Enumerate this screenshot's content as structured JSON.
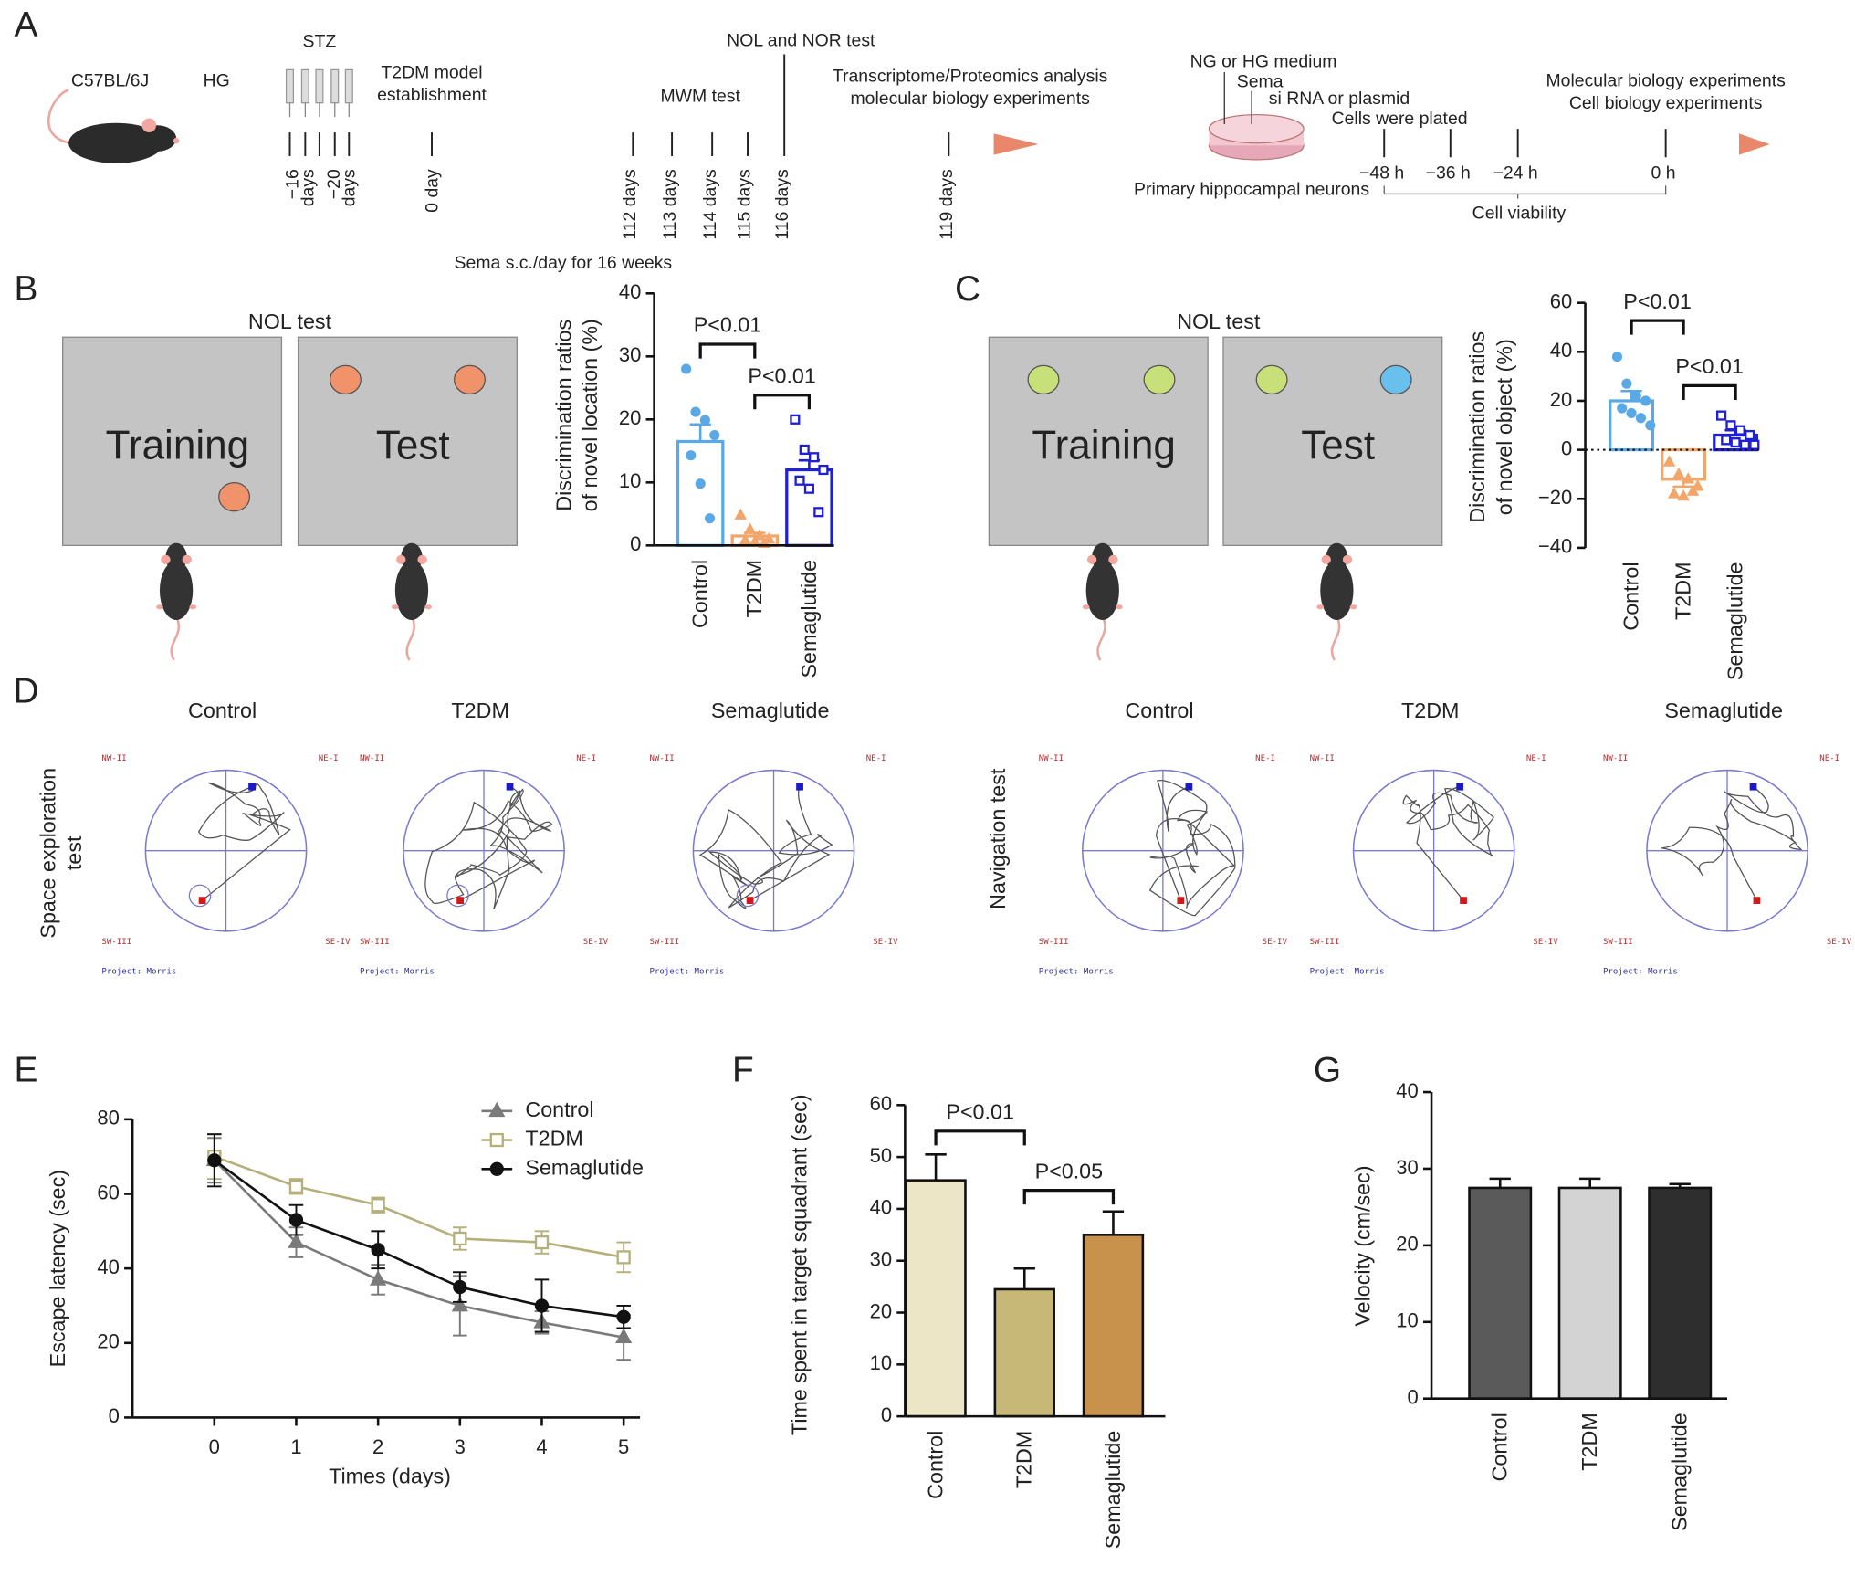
{
  "panel_letters": [
    "A",
    "B",
    "C",
    "D",
    "E",
    "F",
    "G"
  ],
  "panel_a": {
    "strain": "C57BL/6J",
    "diet": "HG",
    "injection": "STZ",
    "model": [
      "T2DM model",
      "establishment"
    ],
    "mwm": "MWM test",
    "nol": "NOL and NOR test",
    "omics": [
      "Transcriptome/Proteomics analysis",
      "molecular biology experiments"
    ],
    "days": [
      [
        "−16",
        "days"
      ],
      [
        "−20",
        "days"
      ],
      [
        "0 day"
      ],
      [
        "112 days"
      ],
      [
        "113 days"
      ],
      [
        "114 days"
      ],
      [
        "115 days"
      ],
      [
        "116 days"
      ],
      [
        "119 days"
      ]
    ],
    "treatment": "Sema s.c./day for 16 weeks",
    "cells": {
      "medium": "NG or HG medium",
      "drug": "Sema",
      "transfection": "si RNA or plasmid",
      "plating": "Cells were plated",
      "experiments": [
        "Molecular biology experiments",
        "Cell biology experiments"
      ],
      "neurons": "Primary hippocampal neurons",
      "hours": [
        "−48 h",
        "−36 h",
        "−24 h",
        "0 h"
      ],
      "viability": "Cell viability"
    }
  },
  "panel_b_scheme": {
    "title": "NOL test",
    "boxes": [
      "Training",
      "Test"
    ]
  },
  "panel_c_scheme": {
    "title": "NOL test",
    "boxes": [
      "Training",
      "Test"
    ]
  },
  "panel_d": {
    "groups": [
      "Control",
      "T2DM",
      "Semaglutide"
    ],
    "rows": [
      [
        "Space exploration",
        "test"
      ],
      [
        "Navigation test"
      ]
    ],
    "corners": [
      "NW-II",
      "NE-I",
      "SW-III",
      "SE-IV"
    ],
    "project": "Project: Morris"
  },
  "chart_data": [
    {
      "type": "bar",
      "ylabel": [
        "Discrimination ratios",
        "of novel location (%)"
      ],
      "categories": [
        "Control",
        "T2DM",
        "Semaglutide"
      ],
      "values": [
        16.5,
        1.5,
        12
      ],
      "errors": [
        2.7,
        0.5,
        1.5
      ],
      "points": [
        [
          28,
          21.2,
          19.9,
          17.5,
          14.3,
          9.8,
          4.3
        ],
        [
          4.8,
          2.5,
          1.5,
          1,
          0.8,
          0.5,
          0.3
        ],
        [
          20,
          15.2,
          14,
          12,
          10.3,
          9,
          5.3
        ]
      ],
      "colors": [
        "#5aa9e6",
        "#f2a66a",
        "#1f1fd6"
      ],
      "bar_style": "outline",
      "point_markers": [
        "circle",
        "triangle",
        "square"
      ],
      "ylim": [
        0,
        40
      ],
      "yticks": [
        0,
        10,
        20,
        30,
        40
      ],
      "annotations": [
        "P<0.01",
        "P<0.01"
      ]
    },
    {
      "type": "bar",
      "ylabel": [
        "Discrimination ratios",
        "of novel object (%)"
      ],
      "categories": [
        "Control",
        "T2DM",
        "Semaglutide"
      ],
      "values": [
        20,
        -12,
        6
      ],
      "errors": [
        4,
        3,
        2
      ],
      "points": [
        [
          38,
          27,
          22,
          20,
          17,
          15,
          13,
          10
        ],
        [
          -5,
          -10,
          -12,
          -15,
          -18,
          -19,
          -17
        ],
        [
          14,
          10,
          8,
          6,
          4,
          3,
          2,
          2
        ]
      ],
      "colors": [
        "#5aa9e6",
        "#f2a66a",
        "#1f1fd6"
      ],
      "bar_style": "outline",
      "point_markers": [
        "circle",
        "triangle",
        "square"
      ],
      "zero_line": "dotted",
      "ylim": [
        -40,
        60
      ],
      "yticks": [
        {
          "value": -40,
          "label": "−40"
        },
        {
          "value": -20,
          "label": "−20"
        },
        0,
        20,
        40,
        60
      ],
      "annotations": [
        "P<0.01",
        "P<0.01"
      ]
    },
    {
      "type": "line",
      "xlabel": "Times (days)",
      "ylabel": "Escape latency (sec)",
      "x": [
        0,
        1,
        2,
        3,
        4,
        5
      ],
      "series": [
        {
          "name": "Control",
          "color": "#7a7a7a",
          "marker": "triangle",
          "values": [
            69,
            47,
            37,
            30,
            25.5,
            21.5
          ],
          "errors": [
            6,
            4,
            4,
            8,
            3,
            6
          ]
        },
        {
          "name": "T2DM",
          "color": "#b5b07a",
          "marker": "square",
          "values": [
            70,
            62,
            57,
            48,
            47,
            43
          ],
          "errors": [
            6,
            2,
            2,
            3,
            3,
            4
          ]
        },
        {
          "name": "Semaglutide",
          "color": "#111111",
          "marker": "circle",
          "values": [
            69,
            53,
            45,
            35,
            30,
            27
          ],
          "errors": [
            7,
            4,
            5,
            4,
            7,
            3
          ]
        }
      ],
      "xlim": [
        -1,
        5.2
      ],
      "xticks": [
        0,
        1,
        2,
        3,
        4,
        5
      ],
      "ylim": [
        0,
        80
      ],
      "yticks": [
        0,
        20,
        40,
        60,
        80
      ],
      "legend": "top-right"
    },
    {
      "type": "bar",
      "ylabel": [
        "Time spent in target squadrant (sec)"
      ],
      "categories": [
        "Control",
        "T2DM",
        "Semaglutide"
      ],
      "values": [
        45.5,
        24.5,
        35
      ],
      "errors": [
        5,
        4,
        4.5
      ],
      "colors": [
        "#ece6c6",
        "#c8b878",
        "#c8924c"
      ],
      "bar_style": "filled",
      "ylim": [
        0,
        60
      ],
      "yticks": [
        0,
        10,
        20,
        30,
        40,
        50,
        60
      ],
      "annotations": [
        "P<0.01",
        "P<0.05"
      ]
    },
    {
      "type": "bar",
      "ylabel": [
        "Velocity (cm/sec)"
      ],
      "categories": [
        "Control",
        "T2DM",
        "Semaglutide"
      ],
      "values": [
        27.5,
        27.5,
        27.5
      ],
      "errors": [
        1.2,
        1.2,
        0.5
      ],
      "colors": [
        "#5a5a5a",
        "#d3d3d3",
        "#2e2e2e"
      ],
      "bar_style": "filled",
      "ylim": [
        0,
        40
      ],
      "yticks": [
        0,
        10,
        20,
        30,
        40
      ]
    }
  ]
}
